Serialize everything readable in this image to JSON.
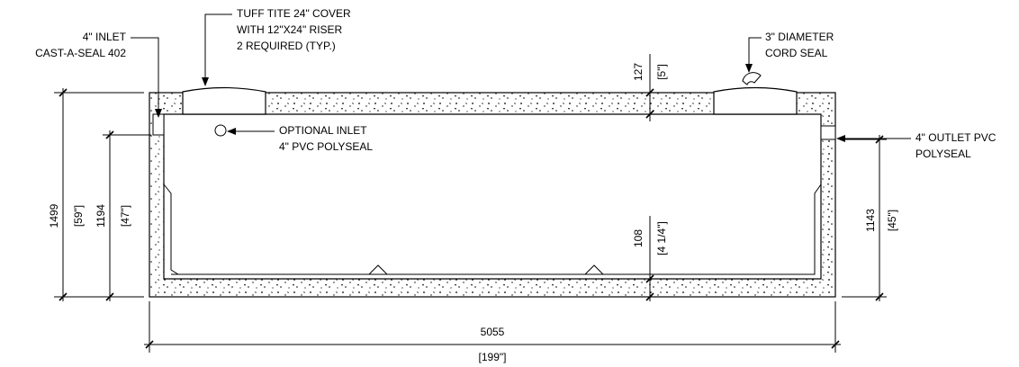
{
  "labels": {
    "inlet": [
      "4\" INLET",
      "CAST-A-SEAL 402"
    ],
    "cover": [
      "TUFF TITE 24\" COVER",
      "WITH 12\"X24\" RISER",
      "2 REQUIRED (TYP.)"
    ],
    "cord_seal": [
      "3\" DIAMETER",
      "CORD SEAL"
    ],
    "optional_inlet": [
      "OPTIONAL INLET",
      "4\" PVC POLYSEAL"
    ],
    "outlet": [
      "4\" OUTLET PVC",
      "POLYSEAL"
    ]
  },
  "dimensions": {
    "top_slab": [
      "127",
      "[5\"]"
    ],
    "total_height": [
      "1499",
      "[59\"]"
    ],
    "inlet_height": [
      "1194",
      "[47\"]"
    ],
    "bottom_slab": [
      "108",
      "[4 1/4\"]"
    ],
    "outlet_height": [
      "1143",
      "[45\"]"
    ],
    "length": [
      "5055",
      "[199\"]"
    ]
  }
}
